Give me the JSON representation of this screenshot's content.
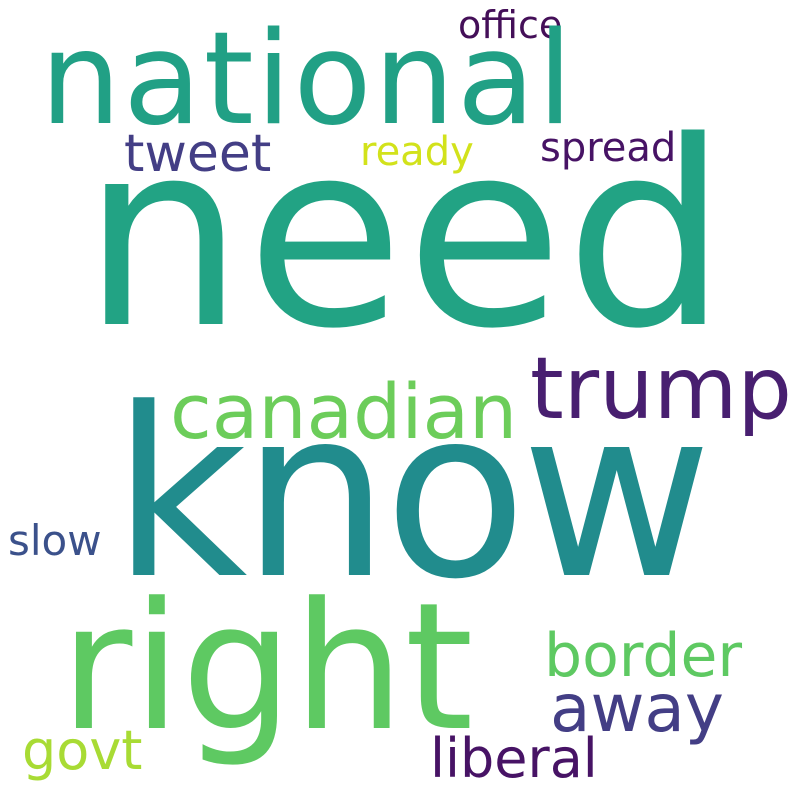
{
  "words": {
    "need": {
      "text": "need",
      "color": "#22a384"
    },
    "national": {
      "text": "national",
      "color": "#21a085"
    },
    "know": {
      "text": "know",
      "color": "#218c8d"
    },
    "right": {
      "text": "right",
      "color": "#5ec962"
    },
    "trump": {
      "text": "trump",
      "color": "#481f70"
    },
    "canadian": {
      "text": "canadian",
      "color": "#6ccd5a"
    },
    "office": {
      "text": "office",
      "color": "#440f58"
    },
    "tweet": {
      "text": "tweet",
      "color": "#433e85"
    },
    "ready": {
      "text": "ready",
      "color": "#d2e21b"
    },
    "spread": {
      "text": "spread",
      "color": "#471365"
    },
    "slow": {
      "text": "slow",
      "color": "#3b518b"
    },
    "border": {
      "text": "border",
      "color": "#5ec962"
    },
    "away": {
      "text": "away",
      "color": "#433e85"
    },
    "govt": {
      "text": "govt",
      "color": "#a8db34"
    },
    "liberal": {
      "text": "liberal",
      "color": "#471365"
    }
  }
}
